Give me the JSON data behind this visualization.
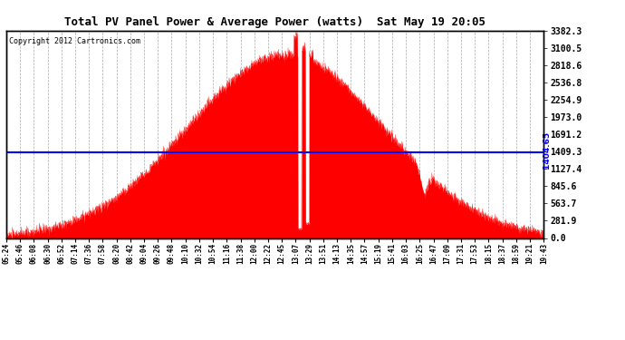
{
  "title": "Total PV Panel Power & Average Power (watts)  Sat May 19 20:05",
  "copyright": "Copyright 2012 Cartronics.com",
  "average_power": 1404.65,
  "y_max": 3382.3,
  "y_min": 0.0,
  "y_ticks": [
    0.0,
    281.9,
    563.7,
    845.6,
    1127.4,
    1409.3,
    1691.2,
    1973.0,
    2254.9,
    2536.8,
    2818.6,
    3100.5,
    3382.3
  ],
  "bg_color": "#ffffff",
  "plot_bg_color": "#ffffff",
  "fill_color": "#ff0000",
  "line_color": "#ff0000",
  "avg_line_color": "#0000ff",
  "grid_color": "#aaaaaa",
  "x_tick_labels": [
    "05:24",
    "05:46",
    "06:08",
    "06:30",
    "06:52",
    "07:14",
    "07:36",
    "07:58",
    "08:20",
    "08:42",
    "09:04",
    "09:26",
    "09:48",
    "10:10",
    "10:32",
    "10:54",
    "11:16",
    "11:38",
    "12:00",
    "12:22",
    "12:45",
    "13:07",
    "13:29",
    "13:51",
    "14:13",
    "14:35",
    "14:57",
    "15:19",
    "15:41",
    "16:03",
    "16:25",
    "16:47",
    "17:09",
    "17:31",
    "17:53",
    "18:15",
    "18:37",
    "18:59",
    "19:21",
    "19:43"
  ]
}
